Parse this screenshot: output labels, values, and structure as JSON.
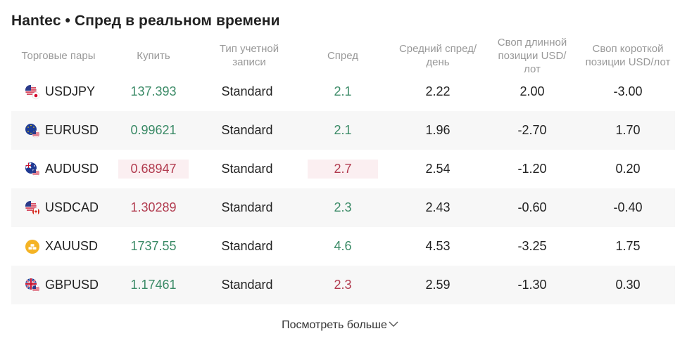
{
  "title": "Hantec • Спред в реальном времени",
  "columns": {
    "pair": "Торговые пары",
    "buy": "Купить",
    "account_type": "Тип учетной записи",
    "spread": "Спред",
    "avg_spread": "Средний спред/день",
    "swap_long": "Своп длинной позиции USD/лот",
    "swap_short": "Своп короткой позиции USD/лот"
  },
  "rows": [
    {
      "pair": "USDJPY",
      "flag": "us-jp-flag-icon",
      "buy": "137.393",
      "buy_dir": "up",
      "account": "Standard",
      "spread": "2.1",
      "spread_dir": "up",
      "avg": "2.22",
      "swap_long": "2.00",
      "swap_short": "-3.00"
    },
    {
      "pair": "EURUSD",
      "flag": "eu-us-flag-icon",
      "buy": "0.99621",
      "buy_dir": "up",
      "account": "Standard",
      "spread": "2.1",
      "spread_dir": "up",
      "avg": "1.96",
      "swap_long": "-2.70",
      "swap_short": "1.70"
    },
    {
      "pair": "AUDUSD",
      "flag": "au-us-flag-icon",
      "buy": "0.68947",
      "buy_dir": "down",
      "account": "Standard",
      "spread": "2.7",
      "spread_dir": "down",
      "avg": "2.54",
      "swap_long": "-1.20",
      "swap_short": "0.20"
    },
    {
      "pair": "USDCAD",
      "flag": "us-ca-flag-icon",
      "buy": "1.30289",
      "buy_dir": "down",
      "account": "Standard",
      "spread": "2.3",
      "spread_dir": "up",
      "avg": "2.43",
      "swap_long": "-0.60",
      "swap_short": "-0.40"
    },
    {
      "pair": "XAUUSD",
      "flag": "gold-bars-icon",
      "buy": "1737.55",
      "buy_dir": "up",
      "account": "Standard",
      "spread": "4.6",
      "spread_dir": "up",
      "avg": "4.53",
      "swap_long": "-3.25",
      "swap_short": "1.75"
    },
    {
      "pair": "GBPUSD",
      "flag": "gb-us-flag-icon",
      "buy": "1.17461",
      "buy_dir": "up",
      "account": "Standard",
      "spread": "2.3",
      "spread_dir": "down",
      "avg": "2.59",
      "swap_long": "-1.30",
      "swap_short": "0.30"
    }
  ],
  "more_label": "Посмотреть больше",
  "colors": {
    "up": "#3a8a66",
    "down": "#b13a4e",
    "row_alt": "#f7f7f7",
    "highlight": "#fbeff1"
  }
}
